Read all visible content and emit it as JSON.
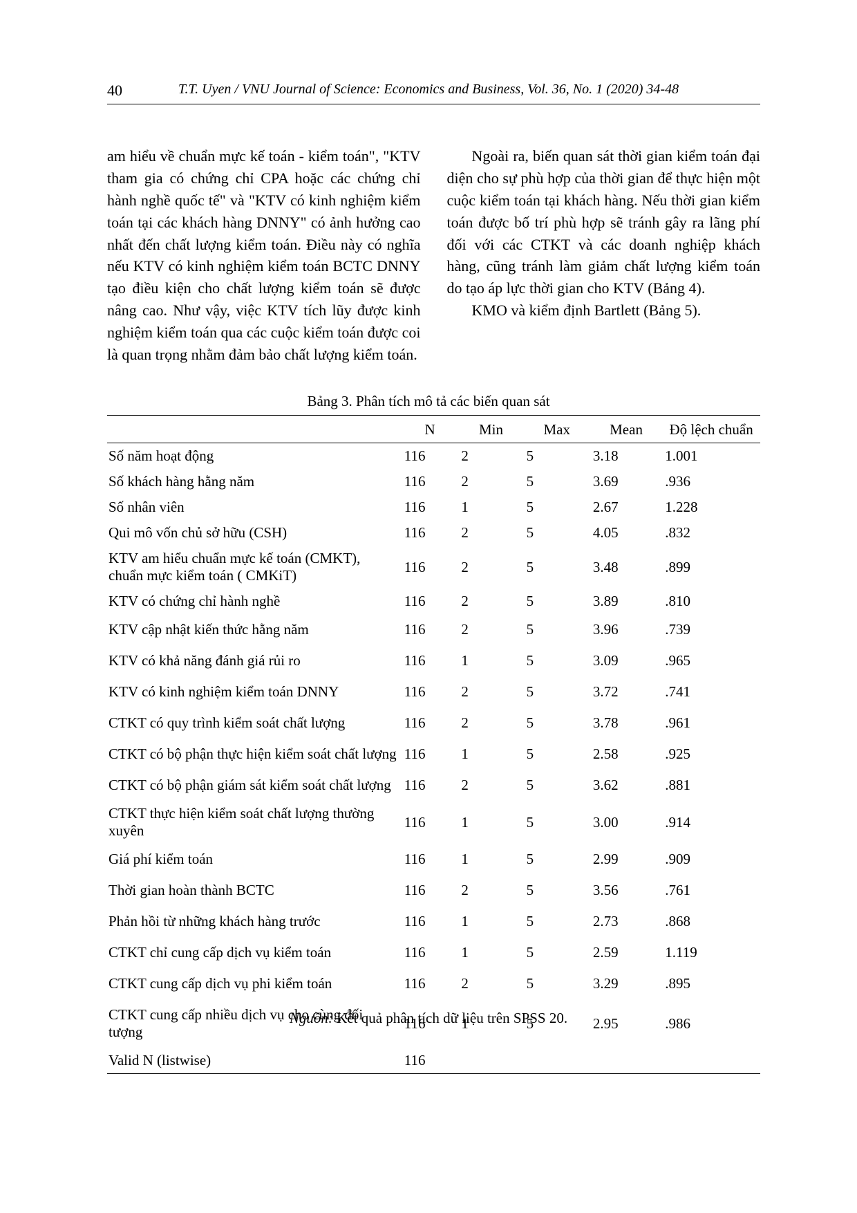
{
  "page_number": "40",
  "running_head": "T.T. Uyen / VNU Journal of Science: Economics and Business, Vol. 36, No. 1 (2020) 34-48",
  "left_column": {
    "para1": "am hiểu về chuẩn mực kế toán - kiểm toán\", \"KTV tham gia có chứng chỉ CPA hoặc các chứng chỉ hành nghề quốc tế\" và \"KTV có kinh nghiệm kiểm toán tại các khách hàng DNNY\" có ảnh hưởng cao nhất đến chất lượng kiểm toán. Điều này có nghĩa nếu KTV có kinh nghiệm kiểm toán BCTC DNNY tạo điều kiện cho chất lượng kiểm toán sẽ được nâng cao. Như vậy, việc KTV tích lũy được kinh nghiệm kiểm toán qua các cuộc kiểm toán được coi là quan trọng nhằm đảm bảo chất lượng kiểm toán."
  },
  "right_column": {
    "para1": "Ngoài ra, biến quan sát thời gian kiểm toán đại diện cho sự phù hợp của thời gian để thực hiện một cuộc kiểm toán tại khách hàng. Nếu thời gian kiểm toán được bố trí phù hợp sẽ tránh gây ra lãng phí đối với các CTKT và các doanh nghiệp khách hàng, cũng tránh làm giảm chất lượng kiểm toán do tạo áp lực thời gian cho KTV (Bảng 4).",
    "para2": "KMO và kiểm định Bartlett (Bảng 5)."
  },
  "table": {
    "caption": "Bảng 3. Phân tích mô tả các biến quan sát",
    "columns": [
      "",
      "N",
      "Min",
      "Max",
      "Mean",
      "Độ lệch chuẩn"
    ],
    "rows": [
      {
        "label": "Số năm hoạt động",
        "n": "116",
        "min": "2",
        "max": "5",
        "mean": "3.18",
        "std": "1.001",
        "tall": false
      },
      {
        "label": "Số khách hàng hằng năm",
        "n": "116",
        "min": "2",
        "max": "5",
        "mean": "3.69",
        "std": ".936",
        "tall": false
      },
      {
        "label": "Số nhân viên",
        "n": "116",
        "min": "1",
        "max": "5",
        "mean": "2.67",
        "std": "1.228",
        "tall": false
      },
      {
        "label": "Qui mô vốn chủ sở hữu (CSH)",
        "n": "116",
        "min": "2",
        "max": "5",
        "mean": "4.05",
        "std": ".832",
        "tall": false
      },
      {
        "label": "KTV am hiểu chuẩn mực kế toán (CMKT), chuẩn mực kiểm toán ( CMKiT)",
        "n": "116",
        "min": "2",
        "max": "5",
        "mean": "3.48",
        "std": ".899",
        "tall": false
      },
      {
        "label": "KTV có chứng chỉ hành nghề",
        "n": "116",
        "min": "2",
        "max": "5",
        "mean": "3.89",
        "std": ".810",
        "tall": false
      },
      {
        "label": "KTV cập nhật kiến thức hằng năm",
        "n": "116",
        "min": "2",
        "max": "5",
        "mean": "3.96",
        "std": ".739",
        "tall": true
      },
      {
        "label": "KTV có khả năng đánh giá rủi ro",
        "n": "116",
        "min": "1",
        "max": "5",
        "mean": "3.09",
        "std": ".965",
        "tall": true
      },
      {
        "label": "KTV có kinh nghiệm kiểm toán DNNY",
        "n": "116",
        "min": "2",
        "max": "5",
        "mean": "3.72",
        "std": ".741",
        "tall": true
      },
      {
        "label": "CTKT có quy trình kiểm soát chất lượng",
        "n": "116",
        "min": "2",
        "max": "5",
        "mean": "3.78",
        "std": ".961",
        "tall": true
      },
      {
        "label": "CTKT có bộ phận thực hiện kiểm soát chất lượng",
        "n": "116",
        "min": "1",
        "max": "5",
        "mean": "2.58",
        "std": ".925",
        "tall": true
      },
      {
        "label": "CTKT có bộ phận giám sát kiểm soát chất lượng",
        "n": "116",
        "min": "2",
        "max": "5",
        "mean": "3.62",
        "std": ".881",
        "tall": true
      },
      {
        "label": "CTKT thực hiện kiểm soát chất lượng thường xuyên",
        "n": "116",
        "min": "1",
        "max": "5",
        "mean": "3.00",
        "std": ".914",
        "tall": false
      },
      {
        "label": "Giá phí kiểm toán",
        "n": "116",
        "min": "1",
        "max": "5",
        "mean": "2.99",
        "std": ".909",
        "tall": true
      },
      {
        "label": "Thời gian hoàn thành BCTC",
        "n": "116",
        "min": "2",
        "max": "5",
        "mean": "3.56",
        "std": ".761",
        "tall": true
      },
      {
        "label": "Phản hồi từ những khách hàng trước",
        "n": "116",
        "min": "1",
        "max": "5",
        "mean": "2.73",
        "std": ".868",
        "tall": true
      },
      {
        "label": "CTKT chỉ cung cấp dịch vụ kiểm toán",
        "n": "116",
        "min": "1",
        "max": "5",
        "mean": "2.59",
        "std": "1.119",
        "tall": true
      },
      {
        "label": "CTKT cung cấp dịch vụ phi kiểm toán",
        "n": "116",
        "min": "2",
        "max": "5",
        "mean": "3.29",
        "std": ".895",
        "tall": true
      },
      {
        "label": "CTKT cung cấp nhiều dịch vụ cho cùng đối tượng",
        "n": "116",
        "min": "1",
        "max": "5",
        "mean": "2.95",
        "std": ".986",
        "tall": true
      },
      {
        "label": "Valid N (listwise)",
        "n": "116",
        "min": "",
        "max": "",
        "mean": "",
        "std": "",
        "tall": false
      }
    ],
    "source_label": "Nguồn:",
    "source_text": " Kết quả phân tích dữ liệu trên SPSS 20."
  }
}
